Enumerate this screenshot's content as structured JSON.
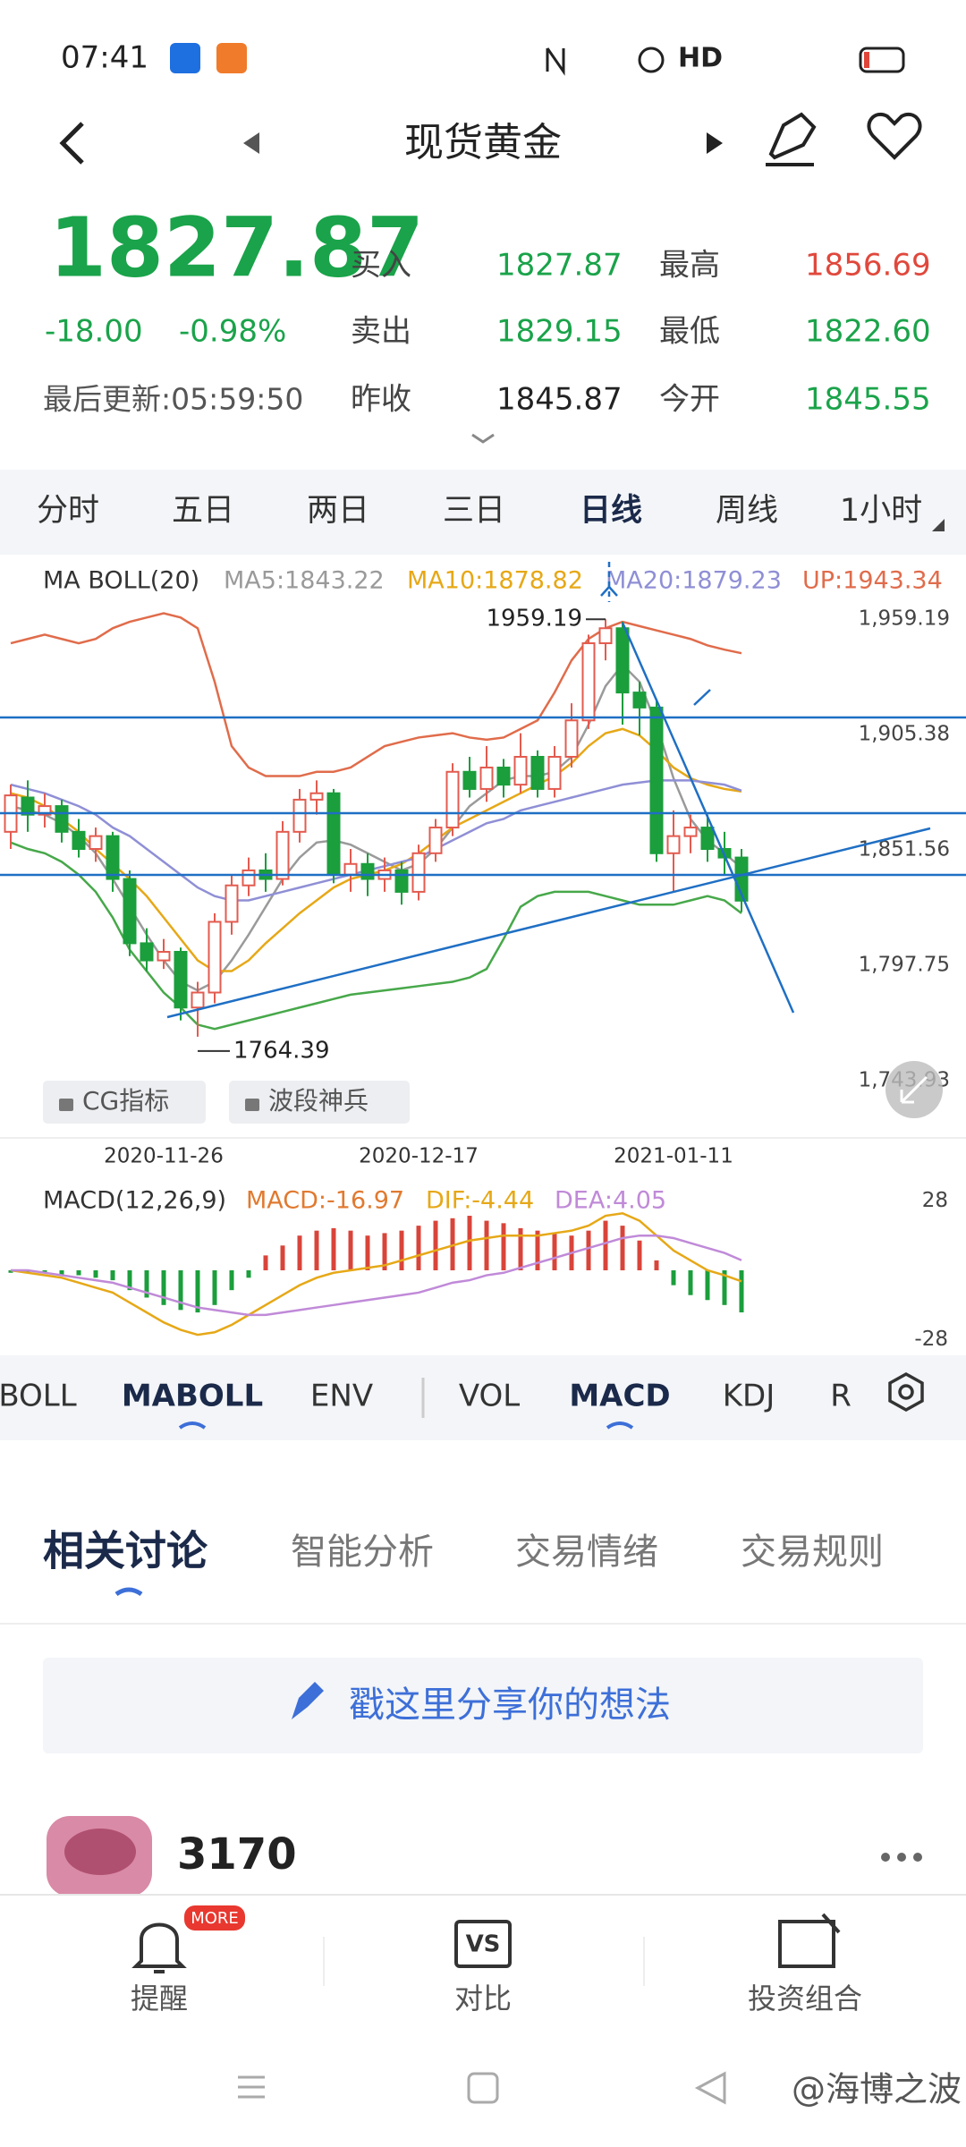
{
  "status_bar": {
    "time": "07:41",
    "hd": "HD"
  },
  "header": {
    "title": "现货黄金"
  },
  "quote": {
    "price": "1827.87",
    "change": "-18.00",
    "change_pct": "-0.98%",
    "updated": "最后更新:05:59:50",
    "fields": [
      {
        "label": "买入",
        "value": "1827.87"
      },
      {
        "label": "卖出",
        "value": "1829.15"
      },
      {
        "label": "昨收",
        "value": "1845.87"
      },
      {
        "label": "最高",
        "value": "1856.69"
      },
      {
        "label": "最低",
        "value": "1822.60"
      },
      {
        "label": "今开",
        "value": "1845.55"
      }
    ]
  },
  "period_tabs": {
    "items": [
      "分时",
      "五日",
      "两日",
      "三日",
      "日线",
      "周线",
      "1小时"
    ],
    "selected": 4
  },
  "chart_data": [
    {
      "type": "candlestick",
      "title": "MA BOLL(20)",
      "ylim": [
        1718,
        1986
      ],
      "yticks": [
        {
          "value": 1959.19,
          "label": "1,959.19"
        },
        {
          "value": 1905.38,
          "label": "1,905.38"
        },
        {
          "value": 1851.56,
          "label": "1,851.56"
        },
        {
          "value": 1797.75,
          "label": "1,797.75"
        },
        {
          "value": 1743.93,
          "label": "1,743.93"
        }
      ],
      "xticks": [
        {
          "value": 9,
          "label": "2020-11-26"
        },
        {
          "value": 24,
          "label": "2020-12-17"
        },
        {
          "value": 39,
          "label": "2021-01-11"
        }
      ],
      "up_color": "#e35b4f",
      "down_color": "#1b9e3c",
      "open": [
        1860,
        1876,
        1868,
        1872,
        1860,
        1852,
        1858,
        1838,
        1808,
        1800,
        1804,
        1778,
        1785,
        1818,
        1835,
        1842,
        1838,
        1860,
        1875,
        1878,
        1840,
        1845,
        1838,
        1842,
        1832,
        1850,
        1862,
        1888,
        1880,
        1890,
        1882,
        1895,
        1880,
        1895,
        1912,
        1948,
        1955,
        1925,
        1918,
        1850,
        1858,
        1862,
        1852,
        1848
      ],
      "high": [
        1882,
        1884,
        1878,
        1875,
        1866,
        1862,
        1860,
        1842,
        1815,
        1810,
        1806,
        1790,
        1822,
        1840,
        1848,
        1850,
        1865,
        1880,
        1884,
        1880,
        1852,
        1850,
        1848,
        1846,
        1854,
        1866,
        1892,
        1895,
        1900,
        1894,
        1906,
        1898,
        1900,
        1920,
        1952,
        1959.19,
        1958,
        1930,
        1922,
        1870,
        1868,
        1868,
        1860,
        1852
      ],
      "low": [
        1852,
        1860,
        1862,
        1855,
        1848,
        1846,
        1832,
        1802,
        1795,
        1796,
        1772,
        1764.39,
        1780,
        1812,
        1830,
        1832,
        1835,
        1855,
        1868,
        1836,
        1832,
        1830,
        1832,
        1826,
        1828,
        1846,
        1858,
        1876,
        1874,
        1876,
        1878,
        1876,
        1876,
        1890,
        1908,
        1940,
        1910,
        1905,
        1846,
        1832,
        1850,
        1846,
        1840,
        1822.6
      ],
      "close": [
        1877,
        1868,
        1872,
        1860,
        1852,
        1858,
        1838,
        1808,
        1800,
        1804,
        1778,
        1785,
        1818,
        1835,
        1842,
        1838,
        1860,
        1875,
        1878,
        1840,
        1845,
        1838,
        1842,
        1832,
        1850,
        1862,
        1888,
        1880,
        1890,
        1882,
        1895,
        1880,
        1895,
        1912,
        1948,
        1955,
        1925,
        1918,
        1850,
        1858,
        1862,
        1852,
        1848,
        1827.87
      ],
      "series": [
        {
          "name": "MA5:1843.22",
          "color": "#9a9a9a",
          "values": [
            1872,
            1870,
            1868,
            1864,
            1858,
            1850,
            1838,
            1825,
            1812,
            1800,
            1790,
            1786,
            1790,
            1800,
            1812,
            1825,
            1838,
            1848,
            1855,
            1856,
            1854,
            1850,
            1846,
            1842,
            1845,
            1852,
            1862,
            1872,
            1878,
            1884,
            1886,
            1886,
            1888,
            1895,
            1910,
            1928,
            1938,
            1930,
            1910,
            1885,
            1866,
            1856,
            1850,
            1843.22
          ]
        },
        {
          "name": "MA10:1878.82",
          "color": "#e6a817",
          "values": [
            1878,
            1876,
            1872,
            1866,
            1860,
            1852,
            1845,
            1838,
            1830,
            1820,
            1810,
            1800,
            1795,
            1795,
            1800,
            1808,
            1815,
            1822,
            1828,
            1834,
            1838,
            1840,
            1842,
            1845,
            1850,
            1856,
            1862,
            1866,
            1870,
            1874,
            1878,
            1882,
            1886,
            1892,
            1900,
            1906,
            1908,
            1905,
            1898,
            1890,
            1885,
            1882,
            1880,
            1878.82
          ]
        },
        {
          "name": "MA20:1879.23",
          "color": "#8f8fd6",
          "values": [
            1882,
            1880,
            1878,
            1875,
            1872,
            1868,
            1862,
            1858,
            1852,
            1846,
            1840,
            1834,
            1830,
            1828,
            1828,
            1830,
            1832,
            1834,
            1836,
            1838,
            1840,
            1842,
            1844,
            1846,
            1848,
            1852,
            1856,
            1860,
            1864,
            1866,
            1870,
            1872,
            1874,
            1876,
            1878,
            1880,
            1882,
            1883,
            1884,
            1884,
            1884,
            1883,
            1882,
            1879.23
          ]
        },
        {
          "name": "UP:1943.34",
          "color": "#e06c4b",
          "values": [
            1948,
            1950,
            1952,
            1950,
            1948,
            1950,
            1955,
            1958,
            1960,
            1962,
            1960,
            1955,
            1930,
            1900,
            1890,
            1886,
            1886,
            1886,
            1888,
            1888,
            1890,
            1895,
            1900,
            1902,
            1904,
            1905,
            1906,
            1904,
            1903,
            1904,
            1908,
            1912,
            1925,
            1940,
            1950,
            1955,
            1958,
            1956,
            1954,
            1952,
            1950,
            1947,
            1945,
            1943.34
          ]
        },
        {
          "color": "#47a84a",
          "values": [
            1855,
            1852,
            1850,
            1846,
            1840,
            1832,
            1820,
            1805,
            1795,
            1785,
            1778,
            1770,
            1768,
            1770,
            1772,
            1774,
            1776,
            1778,
            1780,
            1782,
            1784,
            1785,
            1786,
            1787,
            1788,
            1789,
            1790,
            1792,
            1796,
            1810,
            1825,
            1830,
            1832,
            1832,
            1832,
            1830,
            1828,
            1826,
            1826,
            1826,
            1828,
            1830,
            1828,
            1822
          ]
        }
      ],
      "annotations": [
        {
          "index": 35,
          "value": 1959.19
        },
        {
          "index": 11,
          "value": 1764.39
        }
      ]
    },
    {
      "type": "macd",
      "title": "MACD(12,26,9)",
      "ylim": [
        -35,
        35
      ],
      "yticks": [
        28,
        -28
      ],
      "up_color": "#d9443a",
      "down_color": "#1b9e3c",
      "series": [
        {
          "name": "MACD:-16.97",
          "color": "#e07a30",
          "kind": "bar",
          "values": [
            -1,
            -1,
            -1,
            -2,
            -2,
            -3,
            -4,
            -8,
            -11,
            -14,
            -16,
            -17,
            -14,
            -8,
            -3,
            6,
            10,
            14,
            16,
            17,
            16,
            14,
            15,
            16,
            18,
            20,
            21,
            22,
            20,
            19,
            17,
            16,
            15,
            14,
            16,
            20,
            18,
            12,
            4,
            -6,
            -10,
            -12,
            -14,
            -16.97
          ]
        },
        {
          "name": "DIF:-4.44",
          "color": "#e6a817",
          "kind": "line",
          "values": [
            0,
            -1,
            -2,
            -3,
            -5,
            -7,
            -9,
            -13,
            -17,
            -21,
            -24,
            -26,
            -25,
            -22,
            -18,
            -14,
            -10,
            -6,
            -3,
            -1,
            0,
            1,
            2,
            4,
            6,
            8,
            10,
            12,
            13,
            14,
            14,
            14,
            15,
            16,
            18,
            22,
            23,
            20,
            14,
            8,
            4,
            0,
            -2,
            -4.44
          ]
        },
        {
          "name": "DEA:4.05",
          "color": "#c08ad8",
          "kind": "line",
          "values": [
            0,
            0,
            -1,
            -2,
            -3,
            -4,
            -5,
            -7,
            -9,
            -11,
            -13,
            -15,
            -16,
            -17,
            -18,
            -18,
            -17,
            -16,
            -15,
            -14,
            -13,
            -12,
            -11,
            -10,
            -9,
            -7,
            -5,
            -4,
            -2,
            -1,
            1,
            3,
            5,
            7,
            9,
            11,
            13,
            14,
            14,
            13,
            11,
            9,
            7,
            4.05
          ]
        }
      ]
    }
  ],
  "buttons": [
    "CG指标",
    "波段神兵"
  ],
  "indicator_tabs": {
    "items": [
      "BOLL",
      "MABOLL",
      "ENV",
      "VOL",
      "MACD",
      "KDJ",
      "R"
    ],
    "selected": [
      1,
      4
    ]
  },
  "discussion": {
    "tabs": [
      "相关讨论",
      "智能分析",
      "交易情绪",
      "交易规则"
    ],
    "selected": 0,
    "placeholder": "戳这里分享你的想法"
  },
  "post": {
    "user": "3170"
  },
  "bottom_nav": {
    "badge": "MORE",
    "icon_text": "VS",
    "items": [
      "提醒",
      "对比",
      "投资组合"
    ]
  },
  "watermark": "@海博之波"
}
